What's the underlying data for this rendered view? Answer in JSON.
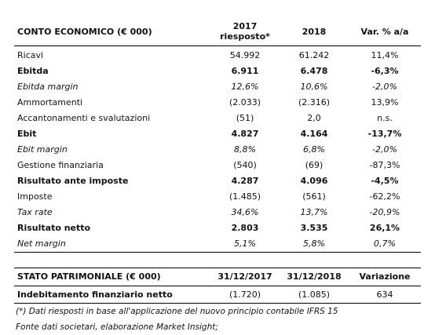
{
  "income_statement": {
    "header": [
      "CONTO ECONOMICO (€ 000)",
      "2017\nriesposto*",
      "2018",
      "Var. % a/a"
    ],
    "rows": [
      {
        "cells": [
          "Ricavi",
          "54.992",
          "61.242",
          "11,4%"
        ],
        "style": "normal"
      },
      {
        "cells": [
          "Ebitda",
          "6.911",
          "6.478",
          "-6,3%"
        ],
        "style": "bold"
      },
      {
        "cells": [
          "Ebitda margin",
          "12,6%",
          "10,6%",
          "-2,0%"
        ],
        "style": "italic"
      },
      {
        "cells": [
          "Ammortamenti",
          "(2.033)",
          "(2.316)",
          "13,9%"
        ],
        "style": "normal"
      },
      {
        "cells": [
          "Accantonamenti e svalutazioni",
          "(51)",
          "2,0",
          "n.s."
        ],
        "style": "normal"
      },
      {
        "cells": [
          "Ebit",
          "4.827",
          "4.164",
          "-13,7%"
        ],
        "style": "bold"
      },
      {
        "cells": [
          "Ebit margin",
          "8,8%",
          "6,8%",
          "-2,0%"
        ],
        "style": "italic"
      },
      {
        "cells": [
          "Gestione finanziaria",
          "(540)",
          "(69)",
          "-87,3%"
        ],
        "style": "normal"
      },
      {
        "cells": [
          "Risultato ante imposte",
          "4.287",
          "4.096",
          "-4,5%"
        ],
        "style": "bold"
      },
      {
        "cells": [
          "Imposte",
          "(1.485)",
          "(561)",
          "-62,2%"
        ],
        "style": "normal"
      },
      {
        "cells": [
          "Tax rate",
          "34,6%",
          "13,7%",
          "-20,9%"
        ],
        "style": "italic"
      },
      {
        "cells": [
          "Risultato netto",
          "2.803",
          "3.535",
          "26,1%"
        ],
        "style": "bold"
      },
      {
        "cells": [
          "Net margin",
          "5,1%",
          "5,8%",
          "0,7%"
        ],
        "style": "italic"
      }
    ]
  },
  "balance_sheet": {
    "header": [
      "STATO PATRIMONIALE (€ 000)",
      "31/12/2017",
      "31/12/2018",
      "Variazione"
    ],
    "rows": [
      {
        "cells": [
          "Indebitamento finanziario netto",
          "(1.720)",
          "(1.085)",
          "634"
        ],
        "style": "bold-label"
      }
    ]
  },
  "footnotes": [
    "(*) Dati riesposti in base all'applicazione del nuovo principio contabile IFRS 15",
    "Fonte dati societari, elaborazione Market Insight;"
  ]
}
